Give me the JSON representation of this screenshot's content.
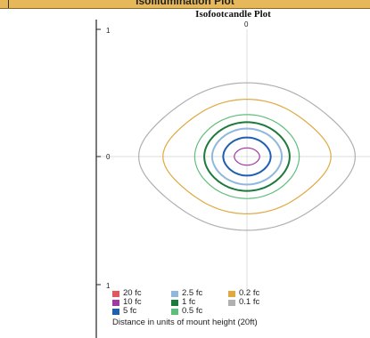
{
  "banner": {
    "title": "Isoillumination Plot"
  },
  "chart_data": {
    "type": "contour",
    "title": "Isofootcandle Plot",
    "x_tick_top": "0",
    "y_ticks": [
      "1",
      "0",
      "1"
    ],
    "xlim": [
      -1,
      1
    ],
    "ylim": [
      -1,
      1
    ],
    "grid": true,
    "legend_position": "bottom-left",
    "series": [
      {
        "name": "20 fc",
        "color": "#e05a5a",
        "radius": null
      },
      {
        "name": "10 fc",
        "color": "#a03aa0",
        "radius": 0.08
      },
      {
        "name": "5 fc",
        "color": "#1f5fb0",
        "radius": 0.15
      },
      {
        "name": "2.5 fc",
        "color": "#8fb8dc",
        "radius": 0.22
      },
      {
        "name": "1 fc",
        "color": "#1e7a3a",
        "radius": 0.27
      },
      {
        "name": "0.5 fc",
        "color": "#5fbf7a",
        "radius": 0.33
      },
      {
        "name": "0.2 fc",
        "color": "#e0a840",
        "radius": 0.45
      },
      {
        "name": "0.1 fc",
        "color": "#b0b0b0",
        "radius": 0.58
      }
    ],
    "legend_note": "Distance in units of mount height (20ft)"
  }
}
